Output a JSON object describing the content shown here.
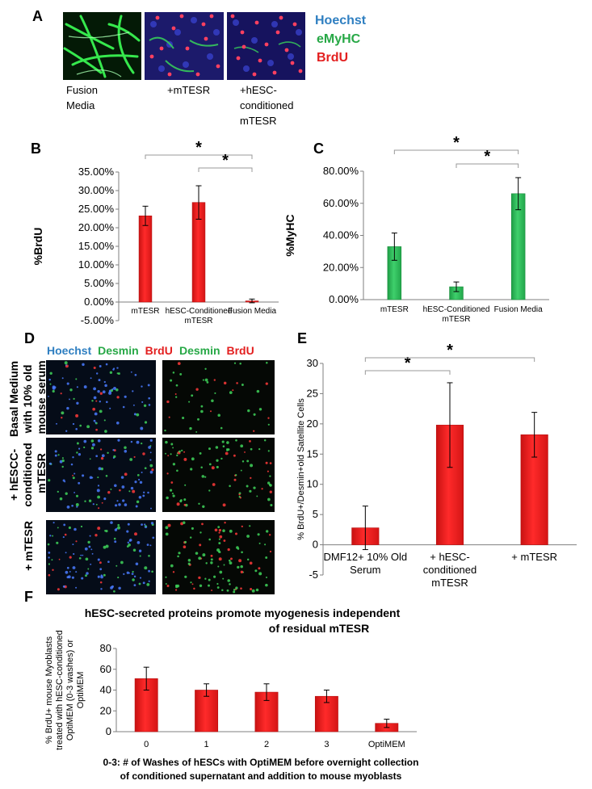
{
  "colors": {
    "red": "#ee1d1d",
    "red_dark": "#b80f0f",
    "green": "#2bbf5a",
    "green_dark": "#1a8e3c",
    "hoechst": "#2f7fc1",
    "emyhc": "#27a846",
    "brdu": "#e31f1f",
    "desmin": "#27a846",
    "bracket": "#999999"
  },
  "panel_a": {
    "label": "A",
    "legend": [
      "Hoechst",
      "eMyHC",
      "BrdU"
    ],
    "captions": [
      [
        "Fusion",
        "Media"
      ],
      [
        "+mTESR"
      ],
      [
        "+hESC-",
        "conditioned",
        "mTESR"
      ]
    ]
  },
  "panel_d": {
    "label": "D",
    "header_left": [
      "Hoechst",
      "Desmin",
      "BrdU"
    ],
    "header_right": [
      "Desmin",
      "BrdU"
    ],
    "row_labels": [
      [
        "Basal Medium",
        "with 10% old",
        "mouse serum"
      ],
      [
        "+ hESCC-",
        "conditioned",
        "mTESR"
      ],
      [
        "+ mTESR"
      ]
    ]
  },
  "chart_data": [
    {
      "panel": "B",
      "type": "bar",
      "categories": [
        "mTESR",
        "hESC-Conditioned mTESR",
        "Fusion Media"
      ],
      "values": [
        0.232,
        0.268,
        0.003
      ],
      "errors": [
        0.026,
        0.045,
        0.005
      ],
      "ylabel": "%BrdU",
      "ylim": [
        -0.05,
        0.35
      ],
      "yticks": [
        -0.05,
        0.0,
        0.05,
        0.1,
        0.15,
        0.2,
        0.25,
        0.3,
        0.35
      ],
      "ytick_labels": [
        "-5.00%",
        "0.00%",
        "5.00%",
        "10.00%",
        "15.00%",
        "20.00%",
        "25.00%",
        "30.00%",
        "35.00%"
      ],
      "significance": [
        {
          "from": 0,
          "to": 2,
          "label": "*"
        },
        {
          "from": 1,
          "to": 2,
          "label": "*"
        }
      ]
    },
    {
      "panel": "C",
      "type": "bar",
      "categories": [
        "mTESR",
        "hESC-Conditioned mTESR",
        "Fusion Media"
      ],
      "values": [
        0.33,
        0.08,
        0.66
      ],
      "errors": [
        0.085,
        0.03,
        0.1
      ],
      "ylabel": "%MyHC",
      "ylim": [
        0.0,
        0.8
      ],
      "yticks": [
        0.0,
        0.2,
        0.4,
        0.6,
        0.8
      ],
      "ytick_labels": [
        "0.00%",
        "20.00%",
        "40.00%",
        "60.00%",
        "80.00%"
      ],
      "significance": [
        {
          "from": 0,
          "to": 2,
          "label": "*"
        },
        {
          "from": 1,
          "to": 2,
          "label": "*"
        }
      ]
    },
    {
      "panel": "E",
      "type": "bar",
      "categories": [
        "DMF12+ 10% Old Serum",
        "+ hESC-conditioned mTESR",
        "+ mTESR"
      ],
      "values": [
        2.8,
        19.8,
        18.2
      ],
      "errors": [
        3.6,
        7.0,
        3.7
      ],
      "ylabel": "% BrdU+/Desmin+old Satellite Cells",
      "ylim": [
        -5,
        30
      ],
      "yticks": [
        -5,
        0,
        5,
        10,
        15,
        20,
        25,
        30
      ],
      "ytick_labels": [
        "-5",
        "0",
        "5",
        "10",
        "15",
        "20",
        "25",
        "30"
      ],
      "significance": [
        {
          "from": 0,
          "to": 1,
          "label": "*"
        },
        {
          "from": 0,
          "to": 2,
          "label": "*"
        }
      ]
    },
    {
      "panel": "F",
      "type": "bar",
      "title": "hESC-secreted proteins promote myogenesis independent of residual mTESR",
      "categories": [
        "0",
        "1",
        "2",
        "3",
        "OptiMEM"
      ],
      "values": [
        51,
        40,
        38,
        34,
        8
      ],
      "errors": [
        11,
        6,
        8,
        6,
        4
      ],
      "ylabel": "% BrdU+ mouse Myoblasts treated with hESC-conditioned OptiMEM (0-3 washes) or OptiMEM",
      "xlabel": "0-3: # of Washes of hESCs with OptiMEM before overnight collection of conditioned supernatant and addition to mouse myoblasts",
      "ylim": [
        0,
        80
      ],
      "yticks": [
        0,
        20,
        40,
        60,
        80
      ],
      "ytick_labels": [
        "0",
        "20",
        "40",
        "60",
        "80"
      ]
    }
  ]
}
